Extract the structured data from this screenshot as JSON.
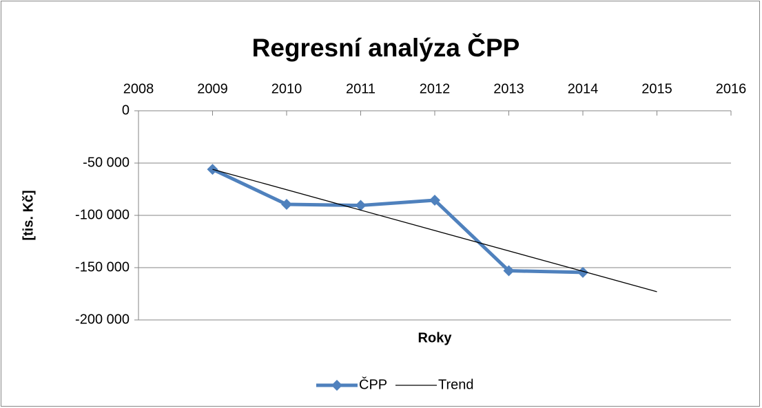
{
  "chart_data": {
    "type": "line",
    "title": "Regresní analýza ČPP",
    "x_label": "Roky",
    "y_label": "[tis. Kč]",
    "xlim": [
      2008,
      2016
    ],
    "xticks": [
      2008,
      2009,
      2010,
      2011,
      2012,
      2013,
      2014,
      2015,
      2016
    ],
    "ylim": [
      -200000,
      0
    ],
    "yticks": [
      {
        "value": -200000,
        "label": "-200 000"
      },
      {
        "value": -150000,
        "label": "-150 000"
      },
      {
        "value": -100000,
        "label": "-100 000"
      },
      {
        "value": -50000,
        "label": "-50 000"
      },
      0
    ],
    "grid": true,
    "legend": "bottom",
    "series": [
      {
        "name": "ČPP",
        "color": "#4f81bd",
        "marker": "diamond",
        "x": [
          2009,
          2010,
          2011,
          2012,
          2013,
          2014
        ],
        "values": [
          -56000,
          -89500,
          -90500,
          -85500,
          -153000,
          -154500
        ]
      },
      {
        "name": "Trend",
        "color": "#000000",
        "x": [
          2009,
          2015
        ],
        "values": [
          -56000,
          -173000
        ]
      }
    ]
  }
}
